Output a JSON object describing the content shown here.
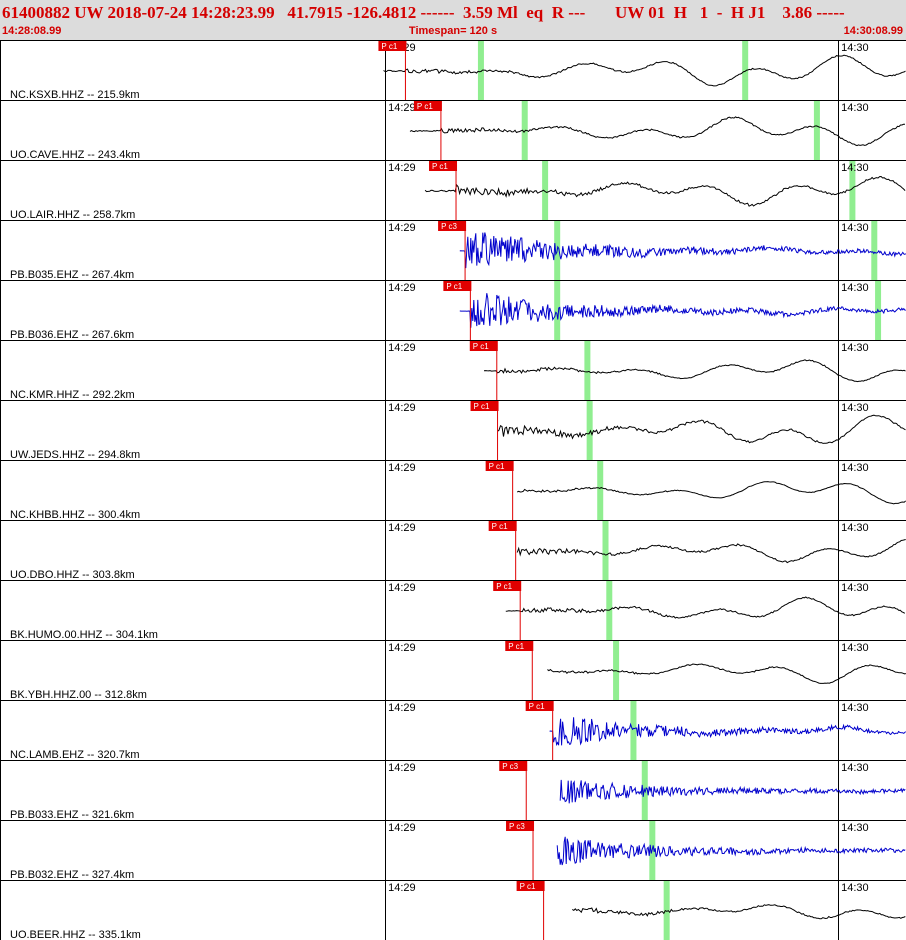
{
  "header": {
    "title": "61400882 UW 2018-07-24 14:28:23.99   41.7915 -126.4812 ------  3.59 Ml  eq  R ---       UW 01  H   1  -  H J1    3.86 -----",
    "start_time": "14:28:08.99",
    "timespan": "Timespan= 120 s",
    "end_time": "14:30:08.99"
  },
  "chart_data": {
    "type": "seismogram record section",
    "timespan_s": 120,
    "x_range": [
      "14:28:08.99",
      "14:30:08.99"
    ],
    "minute_ticks": [
      "14:29",
      "14:30"
    ],
    "colors": {
      "high_gain": "#000000",
      "short_period": "#0000cc",
      "pick": "#e00000",
      "window": "#90ee90"
    },
    "traces": [
      {
        "label": "NC.KSXB.HHZ -- 215.9km",
        "pick": "P c1",
        "pick_s": 53.7,
        "start_s": 50.8,
        "windows_s": [
          63.7,
          98.7
        ],
        "amp": 0.55,
        "noise": 0.06,
        "ring": 0.25,
        "color": "#000000"
      },
      {
        "label": "UO.CAVE.HHZ -- 243.4km",
        "pick": "P c1",
        "pick_s": 58.4,
        "start_s": 54.3,
        "windows_s": [
          69.5,
          108.2
        ],
        "amp": 0.5,
        "noise": 0.06,
        "ring": 0.25,
        "color": "#000000"
      },
      {
        "label": "UO.LAIR.HHZ -- 258.7km",
        "pick": "P c1",
        "pick_s": 60.4,
        "start_s": 56.3,
        "windows_s": [
          72.2,
          112.9
        ],
        "amp": 0.5,
        "noise": 0.08,
        "ring": 0.5,
        "color": "#000000"
      },
      {
        "label": "PB.B035.EHZ -- 267.4km",
        "pick": "P c3",
        "pick_s": 61.6,
        "start_s": 60.9,
        "windows_s": [
          73.8,
          115.8
        ],
        "amp": 0.12,
        "noise": 0.02,
        "ring": 2.2,
        "color": "#0000cc"
      },
      {
        "label": "PB.B036.EHZ -- 267.6km",
        "pick": "P c1",
        "pick_s": 62.3,
        "start_s": 60.9,
        "windows_s": [
          73.8,
          116.3
        ],
        "amp": 0.12,
        "noise": 0.02,
        "ring": 2.0,
        "color": "#0000cc"
      },
      {
        "label": "NC.KMR.HHZ -- 292.2km",
        "pick": "P c1",
        "pick_s": 65.8,
        "start_s": 64.1,
        "windows_s": [
          77.8,
          123.5
        ],
        "amp": 0.45,
        "noise": 0.05,
        "ring": 0.2,
        "color": "#000000"
      },
      {
        "label": "UW.JEDS.HHZ -- 294.8km",
        "pick": "P c1",
        "pick_s": 65.9,
        "start_s": 65.9,
        "windows_s": [
          78.1,
          124.5
        ],
        "amp": 0.6,
        "noise": 0.05,
        "ring": 0.6,
        "color": "#000000"
      },
      {
        "label": "NC.KHBB.HHZ -- 300.4km",
        "pick": "P c1",
        "pick_s": 67.9,
        "start_s": 68.5,
        "windows_s": [
          79.5,
          126.1
        ],
        "amp": 0.45,
        "noise": 0.03,
        "ring": 0.15,
        "color": "#000000"
      },
      {
        "label": "UO.DBO.HHZ -- 303.8km",
        "pick": "P c1",
        "pick_s": 68.3,
        "start_s": 68.5,
        "windows_s": [
          80.2,
          126.8
        ],
        "amp": 0.45,
        "noise": 0.05,
        "ring": 0.35,
        "color": "#000000"
      },
      {
        "label": "BK.HUMO.00.HHZ -- 304.1km",
        "pick": "P c1",
        "pick_s": 68.9,
        "start_s": 67.0,
        "windows_s": [
          80.7,
          127.2
        ],
        "amp": 0.5,
        "noise": 0.05,
        "ring": 0.3,
        "color": "#000000"
      },
      {
        "label": "BK.YBH.HHZ.00 -- 312.8km",
        "pick": "P c1",
        "pick_s": 70.5,
        "start_s": 72.5,
        "windows_s": [
          81.6,
          130.6
        ],
        "amp": 0.45,
        "noise": 0.04,
        "ring": 0.2,
        "color": "#000000"
      },
      {
        "label": "NC.LAMB.EHZ -- 320.7km",
        "pick": "P c1",
        "pick_s": 73.2,
        "start_s": 72.8,
        "windows_s": [
          83.9,
          133.6
        ],
        "amp": 0.14,
        "noise": 0.04,
        "ring": 1.6,
        "color": "#0000cc"
      },
      {
        "label": "PB.B033.EHZ -- 321.6km",
        "pick": "P c3",
        "pick_s": 69.7,
        "start_s": 74.2,
        "windows_s": [
          85.4,
          135.1
        ],
        "amp": 0.03,
        "noise": 0.01,
        "ring": 1.8,
        "color": "#0000cc"
      },
      {
        "label": "PB.B032.EHZ -- 327.4km",
        "pick": "P c3",
        "pick_s": 70.6,
        "start_s": 73.8,
        "windows_s": [
          86.4,
          138.1
        ],
        "amp": 0.04,
        "noise": 0.01,
        "ring": 1.9,
        "color": "#0000cc"
      },
      {
        "label": "UO.BEER.HHZ -- 335.1km",
        "pick": "P c1",
        "pick_s": 72.0,
        "start_s": 75.8,
        "windows_s": [
          88.3,
          140.1
        ],
        "amp": 0.35,
        "noise": 0.04,
        "ring": 0.45,
        "color": "#000000"
      }
    ]
  }
}
